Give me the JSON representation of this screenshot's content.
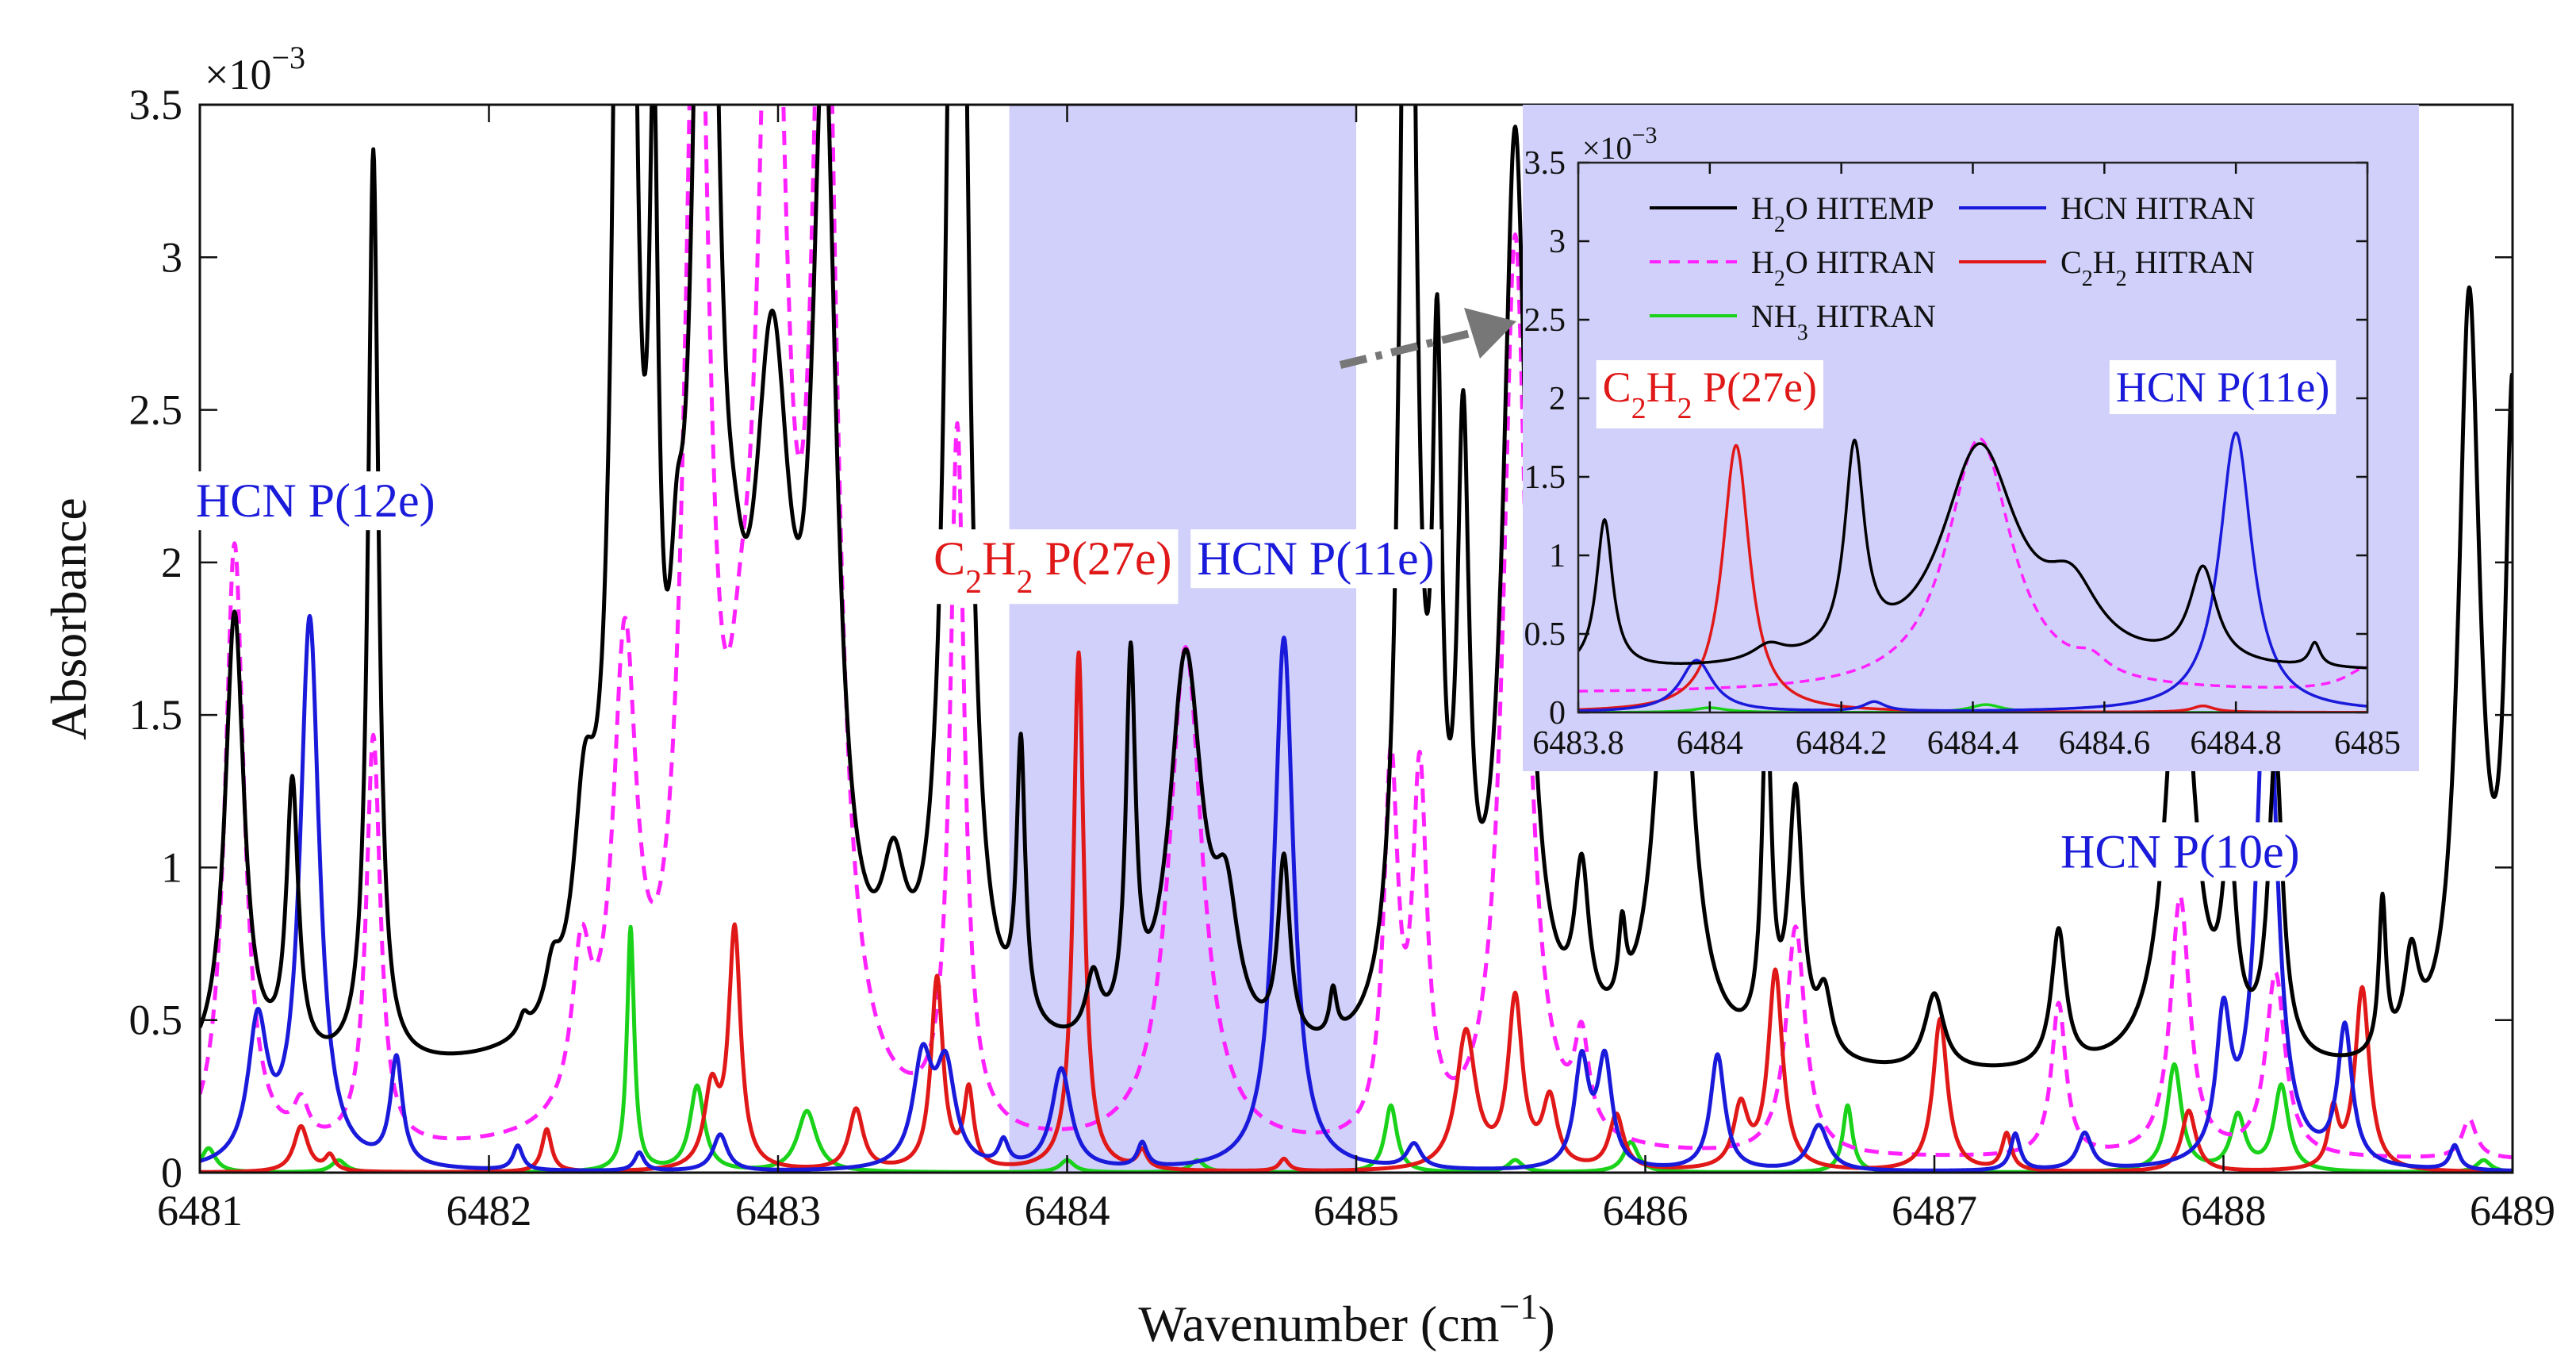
{
  "chart_data": [
    {
      "type": "line",
      "role": "main",
      "xlabel_main": "Wavenumber (cm",
      "xlabel_sup": "−1",
      "xlabel_close": ")",
      "ylabel": "Absorbance",
      "xlim": [
        6481,
        6489
      ],
      "ylim": [
        0,
        0.0035
      ],
      "xticks": [
        6481,
        6482,
        6483,
        6484,
        6485,
        6486,
        6487,
        6488,
        6489
      ],
      "ytick_labels": [
        "0",
        "0.5",
        "1",
        "1.5",
        "2",
        "2.5",
        "3",
        "3.5"
      ],
      "exponent_label": "×10",
      "exponent_sup": "−3",
      "highlight_region": [
        6483.8,
        6485.0
      ],
      "annotations": [
        {
          "text": "HCN P(12e)",
          "x": 6481.4,
          "y": 0.00215,
          "color": "#1a1adb"
        },
        {
          "text": "C₂H₂ P(27e)",
          "x": 6483.95,
          "y": 0.00196,
          "color": "#e01818"
        },
        {
          "text": "HCN P(11e)",
          "x": 6484.86,
          "y": 0.00196,
          "color": "#1a1adb"
        },
        {
          "text": "HCN P(10e)",
          "x": 6487.85,
          "y": 0.001,
          "color": "#1a1adb"
        }
      ],
      "series": [
        {
          "name": "H₂O HITEMP",
          "color": "#000000",
          "dash": "solid",
          "baseline": 0.0003,
          "peaks": [
            [
              6481.12,
              0.0015,
              0.04
            ],
            [
              6481.32,
              0.0009,
              0.025
            ],
            [
              6481.6,
              0.003,
              0.022
            ],
            [
              6482.12,
              6e-05,
              0.02
            ],
            [
              6482.22,
              0.00015,
              0.03
            ],
            [
              6482.33,
              0.0006,
              0.045
            ],
            [
              6482.47,
              0.008,
              0.03
            ],
            [
              6482.57,
              0.0022,
              0.02
            ],
            [
              6482.65,
              0.0006,
              0.03
            ],
            [
              6482.75,
              0.005,
              0.045
            ],
            [
              6482.85,
              0.0004,
              0.05
            ],
            [
              6482.98,
              0.002,
              0.08
            ],
            [
              6483.16,
              0.003,
              0.05
            ],
            [
              6483.4,
              0.0004,
              0.05
            ],
            [
              6483.62,
              0.006,
              0.035
            ],
            [
              6483.84,
              0.0009,
              0.018
            ],
            [
              6484.09,
              0.0002,
              0.03
            ],
            [
              6484.22,
              0.0012,
              0.02
            ],
            [
              6484.41,
              0.0013,
              0.07
            ],
            [
              6484.55,
              0.0004,
              0.05
            ],
            [
              6484.75,
              0.0006,
              0.025
            ],
            [
              6484.92,
              0.00015,
              0.015
            ],
            [
              6485.18,
              0.005,
              0.03
            ],
            [
              6485.28,
              0.0019,
              0.02
            ],
            [
              6485.37,
              0.0018,
              0.025
            ],
            [
              6485.55,
              0.003,
              0.05
            ],
            [
              6485.78,
              0.0005,
              0.03
            ],
            [
              6485.92,
              0.00025,
              0.015
            ],
            [
              6486.1,
              0.002,
              0.06
            ],
            [
              6486.42,
              0.0011,
              0.02
            ],
            [
              6486.52,
              0.00085,
              0.03
            ],
            [
              6486.62,
              0.0002,
              0.03
            ],
            [
              6487.0,
              0.00025,
              0.04
            ],
            [
              6487.43,
              0.00045,
              0.03
            ],
            [
              6487.85,
              0.0015,
              0.06
            ],
            [
              6488.02,
              0.0006,
              0.03
            ],
            [
              6488.18,
              0.001,
              0.03
            ],
            [
              6488.55,
              0.0005,
              0.015
            ],
            [
              6488.65,
              0.0003,
              0.03
            ],
            [
              6488.85,
              0.0025,
              0.045
            ],
            [
              6489.0,
              0.0021,
              0.03
            ]
          ]
        },
        {
          "name": "H₂O HITRAN",
          "color": "#ff22ff",
          "dash": "dashed",
          "baseline": 4e-05,
          "peaks": [
            [
              6481.12,
              0.002,
              0.04
            ],
            [
              6481.35,
              0.00012,
              0.03
            ],
            [
              6481.6,
              0.00135,
              0.03
            ],
            [
              6482.32,
              0.0005,
              0.04
            ],
            [
              6482.47,
              0.0015,
              0.05
            ],
            [
              6482.72,
              0.004,
              0.05
            ],
            [
              6482.87,
              0.0005,
              0.05
            ],
            [
              6482.98,
              0.004,
              0.06
            ],
            [
              6483.16,
              0.004,
              0.05
            ],
            [
              6483.62,
              0.0023,
              0.03
            ],
            [
              6484.41,
              0.00165,
              0.07
            ],
            [
              6485.12,
              0.0012,
              0.03
            ],
            [
              6485.22,
              0.00115,
              0.03
            ],
            [
              6485.55,
              0.003,
              0.05
            ],
            [
              6485.78,
              0.0003,
              0.03
            ],
            [
              6486.52,
              0.00075,
              0.04
            ],
            [
              6487.43,
              0.0005,
              0.03
            ],
            [
              6487.85,
              0.00085,
              0.04
            ],
            [
              6488.18,
              0.0006,
              0.04
            ],
            [
              6488.85,
              0.00013,
              0.03
            ]
          ]
        },
        {
          "name": "HCN HITRAN",
          "color": "#1a1adb",
          "dash": "solid",
          "baseline": 0.0,
          "peaks": [
            [
              6481.2,
              0.00045,
              0.04
            ],
            [
              6481.38,
              0.0018,
              0.04
            ],
            [
              6481.68,
              0.00035,
              0.025
            ],
            [
              6482.1,
              8e-05,
              0.02
            ],
            [
              6482.52,
              6e-05,
              0.02
            ],
            [
              6482.8,
              0.00012,
              0.03
            ],
            [
              6483.5,
              0.00035,
              0.04
            ],
            [
              6483.58,
              0.00032,
              0.04
            ],
            [
              6483.78,
              8e-05,
              0.02
            ],
            [
              6483.98,
              0.00033,
              0.04
            ],
            [
              6484.26,
              8e-05,
              0.02
            ],
            [
              6484.75,
              0.00175,
              0.04
            ],
            [
              6485.2,
              8e-05,
              0.03
            ],
            [
              6485.78,
              0.00035,
              0.03
            ],
            [
              6485.86,
              0.00035,
              0.03
            ],
            [
              6486.25,
              0.00038,
              0.03
            ],
            [
              6486.6,
              0.00015,
              0.04
            ],
            [
              6487.28,
              0.00012,
              0.02
            ],
            [
              6487.52,
              0.00012,
              0.03
            ],
            [
              6488.0,
              0.00045,
              0.03
            ],
            [
              6488.15,
              0.0018,
              0.04
            ],
            [
              6488.42,
              0.00045,
              0.03
            ],
            [
              6488.8,
              8e-05,
              0.02
            ]
          ]
        },
        {
          "name": "C₂H₂ HITRAN",
          "color": "#e01818",
          "dash": "solid",
          "baseline": 0.0,
          "peaks": [
            [
              6481.35,
              0.00015,
              0.03
            ],
            [
              6481.45,
              5e-05,
              0.02
            ],
            [
              6482.2,
              0.00014,
              0.02
            ],
            [
              6482.77,
              0.00025,
              0.03
            ],
            [
              6482.85,
              0.00078,
              0.025
            ],
            [
              6483.27,
              0.0002,
              0.03
            ],
            [
              6483.55,
              0.00063,
              0.025
            ],
            [
              6483.66,
              0.00025,
              0.02
            ],
            [
              6484.04,
              0.0017,
              0.022
            ],
            [
              6484.26,
              6e-05,
              0.02
            ],
            [
              6484.75,
              4e-05,
              0.02
            ],
            [
              6485.38,
              0.00045,
              0.04
            ],
            [
              6485.55,
              0.00055,
              0.03
            ],
            [
              6485.67,
              0.00022,
              0.03
            ],
            [
              6485.9,
              0.00018,
              0.03
            ],
            [
              6486.33,
              0.0002,
              0.03
            ],
            [
              6486.45,
              0.00065,
              0.03
            ],
            [
              6487.02,
              0.0005,
              0.03
            ],
            [
              6487.25,
              0.00012,
              0.02
            ],
            [
              6487.88,
              0.0002,
              0.03
            ],
            [
              6488.38,
              0.00018,
              0.02
            ],
            [
              6488.48,
              0.0006,
              0.03
            ]
          ]
        },
        {
          "name": "NH₃ HITRAN",
          "color": "#19d219",
          "dash": "solid",
          "baseline": 0.0,
          "peaks": [
            [
              6481.03,
              8e-05,
              0.03
            ],
            [
              6481.48,
              4e-05,
              0.03
            ],
            [
              6482.49,
              0.0008,
              0.015
            ],
            [
              6482.72,
              0.00028,
              0.03
            ],
            [
              6483.1,
              0.0002,
              0.04
            ],
            [
              6484.0,
              4e-05,
              0.03
            ],
            [
              6484.45,
              4e-05,
              0.03
            ],
            [
              6485.12,
              0.00022,
              0.025
            ],
            [
              6485.55,
              4e-05,
              0.03
            ],
            [
              6485.95,
              0.0001,
              0.03
            ],
            [
              6486.7,
              0.00022,
              0.02
            ],
            [
              6487.83,
              0.00035,
              0.03
            ],
            [
              6488.05,
              0.00018,
              0.03
            ],
            [
              6488.2,
              0.00028,
              0.03
            ],
            [
              6488.9,
              4e-05,
              0.03
            ]
          ]
        }
      ]
    },
    {
      "type": "line",
      "role": "inset",
      "xlim": [
        6483.8,
        6485.0
      ],
      "ylim": [
        0,
        0.0035
      ],
      "xticks": [
        6483.8,
        6484.0,
        6484.2,
        6484.4,
        6484.6,
        6484.8,
        6485.0
      ],
      "xtick_labels": [
        "6483.8",
        "6484",
        "6484.2",
        "6484.4",
        "6484.6",
        "6484.8",
        "6485"
      ],
      "ytick_labels": [
        "0",
        "0.5",
        "1",
        "1.5",
        "2",
        "2.5",
        "3",
        "3.5"
      ],
      "exponent_label": "×10",
      "exponent_sup": "−3",
      "annotations": [
        {
          "text": "C₂H₂ P(27e)",
          "x": 6484.0,
          "y": 0.00198,
          "color": "#e01818"
        },
        {
          "text": "HCN P(11e)",
          "x": 6484.78,
          "y": 0.00198,
          "color": "#1a1adb"
        }
      ],
      "legend": {
        "placement": "top",
        "entries": [
          {
            "label": "H₂O HITEMP",
            "color": "#000000",
            "dash": "solid"
          },
          {
            "label": "HCN HITRAN",
            "color": "#1a1adb",
            "dash": "solid"
          },
          {
            "label": "H₂O HITRAN",
            "color": "#ff22ff",
            "dash": "dashed"
          },
          {
            "label": "C₂H₂ HITRAN",
            "color": "#e01818",
            "dash": "solid"
          },
          {
            "label": "NH₃ HITRAN",
            "color": "#19d219",
            "dash": "solid"
          }
        ]
      },
      "series": [
        {
          "name": "H₂O HITEMP",
          "color": "#000000",
          "dash": "solid",
          "baseline": 0.00025,
          "peaks": [
            [
              6483.84,
              0.00095,
              0.015
            ],
            [
              6484.09,
              0.0001,
              0.03
            ],
            [
              6484.22,
              0.0013,
              0.018
            ],
            [
              6484.41,
              0.0014,
              0.07
            ],
            [
              6484.55,
              0.0004,
              0.05
            ],
            [
              6484.75,
              0.0006,
              0.025
            ],
            [
              6484.92,
              0.00015,
              0.01
            ]
          ]
        },
        {
          "name": "H₂O HITRAN",
          "color": "#ff22ff",
          "dash": "dashed",
          "baseline": 0.00012,
          "peaks": [
            [
              6484.41,
              0.00162,
              0.06
            ],
            [
              6484.58,
              0.0001,
              0.03
            ],
            [
              6485.0,
              0.00015,
              0.04
            ]
          ]
        },
        {
          "name": "HCN HITRAN",
          "color": "#1a1adb",
          "dash": "solid",
          "baseline": 0.0,
          "peaks": [
            [
              6483.98,
              0.00033,
              0.03
            ],
            [
              6484.25,
              6e-05,
              0.02
            ],
            [
              6484.8,
              0.00178,
              0.03
            ]
          ]
        },
        {
          "name": "C₂H₂ HITRAN",
          "color": "#e01818",
          "dash": "solid",
          "baseline": 0.0,
          "peaks": [
            [
              6484.04,
              0.0017,
              0.025
            ],
            [
              6484.75,
              4e-05,
              0.02
            ]
          ]
        },
        {
          "name": "NH₃ HITRAN",
          "color": "#19d219",
          "dash": "solid",
          "baseline": 0.0,
          "peaks": [
            [
              6484.0,
              3e-05,
              0.03
            ],
            [
              6484.42,
              5e-05,
              0.03
            ]
          ]
        }
      ]
    }
  ]
}
